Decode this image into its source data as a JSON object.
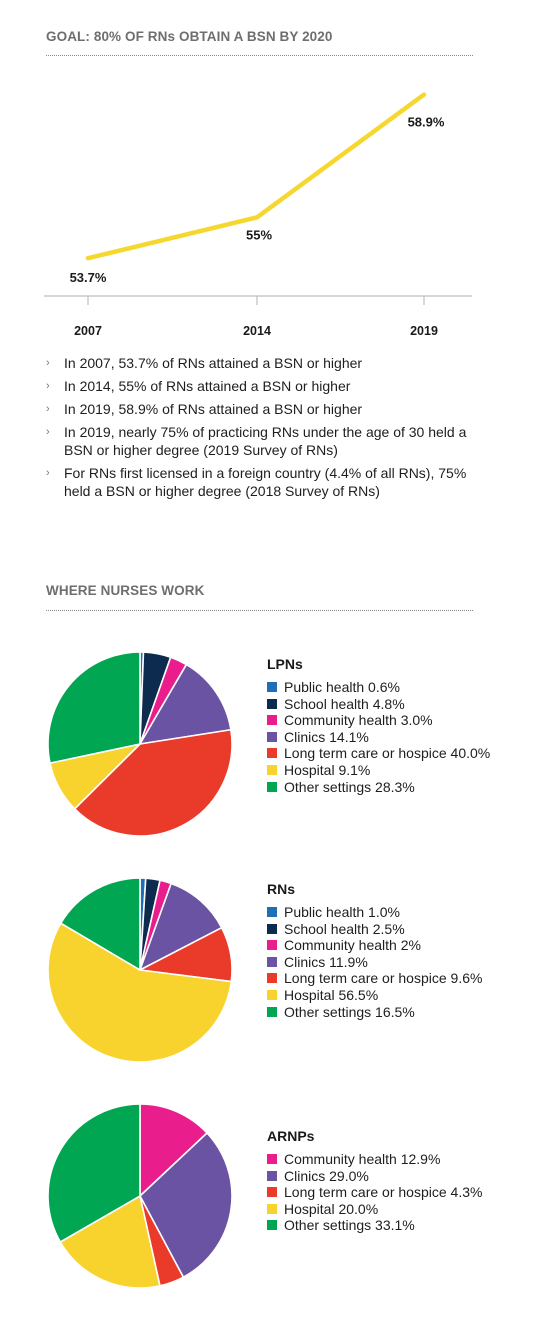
{
  "bsn_section": {
    "title": "GOAL: 80% OF RNs OBTAIN A BSN BY 2020"
  },
  "chart_data": [
    {
      "type": "line",
      "title": "GOAL: 80% OF RNs OBTAIN A BSN BY 2020",
      "x": [
        "2007",
        "2014",
        "2019"
      ],
      "y": [
        53.7,
        55.0,
        58.9
      ],
      "data_labels": [
        "53.7%",
        "55%",
        "58.9%"
      ],
      "line_color": "#f6d730",
      "ylim": [
        52.5,
        60
      ],
      "grid": false
    },
    {
      "type": "pie",
      "title": "LPNs",
      "categories": [
        "Public health",
        "School health",
        "Community health",
        "Clinics",
        "Long term care or hospice",
        "Hospital",
        "Other settings"
      ],
      "values": [
        0.6,
        4.8,
        3.0,
        14.1,
        40.0,
        9.1,
        28.3
      ],
      "legend_labels": [
        "Public health 0.6%",
        "School health 4.8%",
        "Community health 3.0%",
        "Clinics 14.1%",
        "Long term care or hospice 40.0%",
        "Hospital 9.1%",
        "Other settings 28.3%"
      ],
      "colors": [
        "#1f6fb8",
        "#0d2a4f",
        "#e91e8c",
        "#6a53a2",
        "#ea3a2a",
        "#f8d32e",
        "#00a651"
      ],
      "legend_placement": "right"
    },
    {
      "type": "pie",
      "title": "RNs",
      "categories": [
        "Public health",
        "School health",
        "Community health",
        "Clinics",
        "Long term care or hospice",
        "Hospital",
        "Other settings"
      ],
      "values": [
        1.0,
        2.5,
        2.0,
        11.9,
        9.6,
        56.5,
        16.5
      ],
      "legend_labels": [
        "Public health 1.0%",
        "School health 2.5%",
        "Community health 2%",
        "Clinics 11.9%",
        "Long term care or hospice 9.6%",
        "Hospital 56.5%",
        "Other settings 16.5%"
      ],
      "colors": [
        "#1f6fb8",
        "#0d2a4f",
        "#e91e8c",
        "#6a53a2",
        "#ea3a2a",
        "#f8d32e",
        "#00a651"
      ],
      "legend_placement": "right"
    },
    {
      "type": "pie",
      "title": "ARNPs",
      "categories": [
        "Community health",
        "Clinics",
        "Long term care or hospice",
        "Hospital",
        "Other settings"
      ],
      "values": [
        12.9,
        29.0,
        4.3,
        20.0,
        33.1
      ],
      "legend_labels": [
        "Community health 12.9%",
        "Clinics 29.0%",
        "Long term care or hospice 4.3%",
        "Hospital 20.0%",
        "Other settings 33.1%"
      ],
      "colors": [
        "#e91e8c",
        "#6a53a2",
        "#ea3a2a",
        "#f8d32e",
        "#00a651"
      ],
      "legend_placement": "right"
    }
  ],
  "bullets": [
    "In 2007, 53.7% of RNs attained a BSN or higher",
    "In 2014, 55% of RNs attained a BSN or higher",
    "In 2019, 58.9% of RNs attained a BSN or higher",
    "In 2019, nearly 75% of practicing RNs under the age of 30 held a BSN or higher degree (2019 Survey of RNs)",
    "For RNs first licensed in a foreign country (4.4% of all RNs), 75% held a BSN or higher degree (2018 Survey of RNs)"
  ],
  "work_section": {
    "title": "WHERE NURSES WORK"
  }
}
